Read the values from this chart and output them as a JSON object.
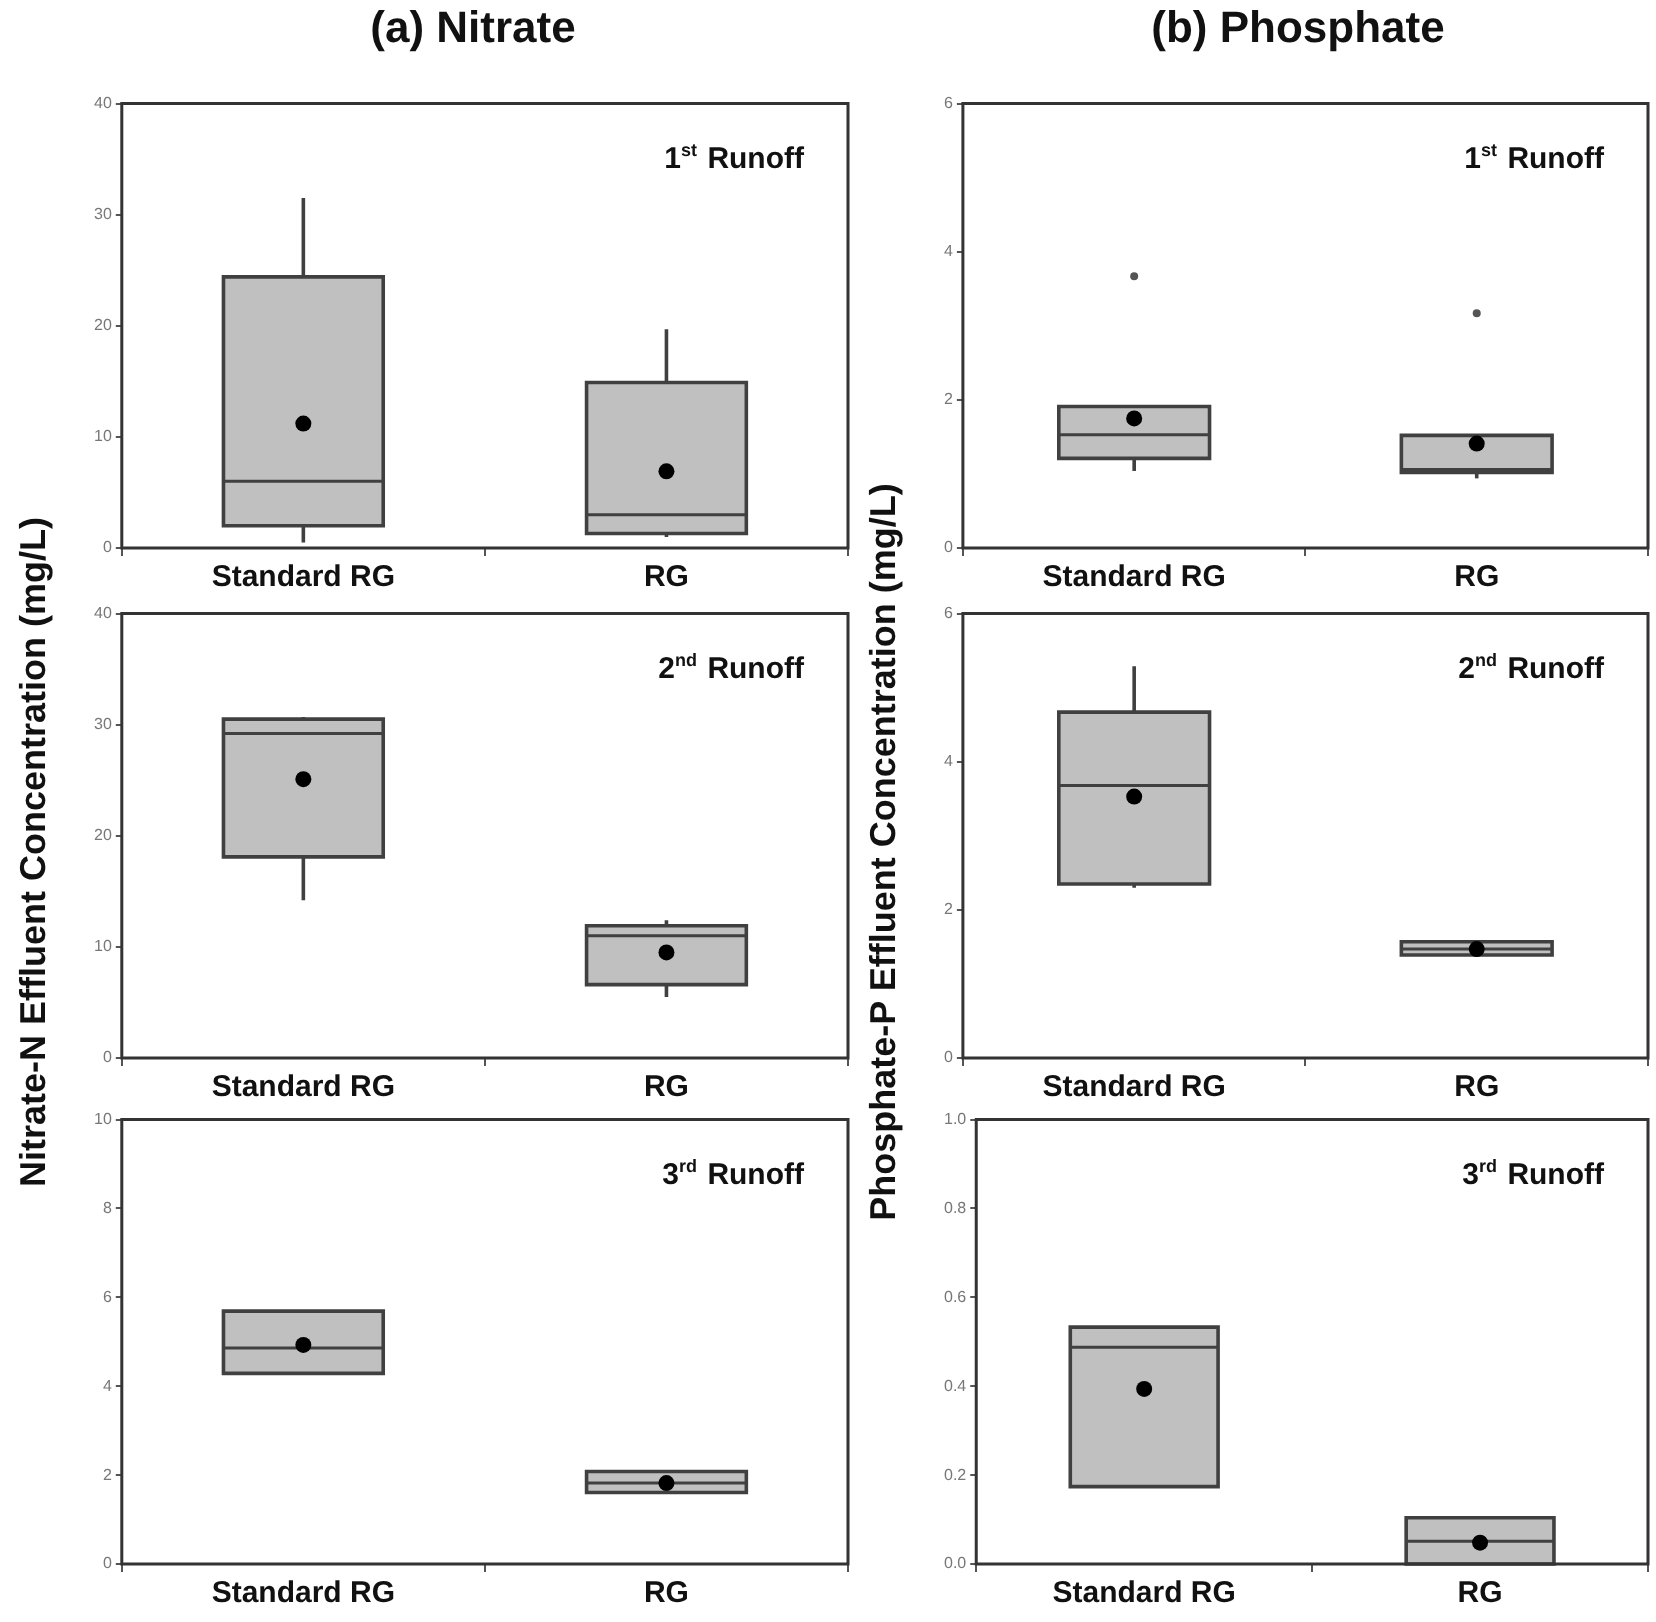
{
  "chart_data": [
    {
      "type": "box",
      "title": "(a) Nitrate",
      "categories": [
        "Standard RG",
        "RG"
      ],
      "ylim": [
        0,
        40
      ],
      "yticks": [
        0,
        10,
        20,
        30,
        40
      ],
      "annotations": [
        "1$^{st}$ Runoff"
      ],
      "series": [
        {
          "color": "#c0c0c0",
          "boxes": [
            {
              "low": 0.5,
              "q1": 2.0,
              "median": 6.0,
              "q3": 24.4,
              "high": 31.5,
              "mean": 11.2
            },
            {
              "low": 1.0,
              "q1": 1.3,
              "median": 3.0,
              "q3": 14.9,
              "high": 19.7,
              "mean": 6.9
            }
          ]
        }
      ]
    },
    {
      "type": "box",
      "title": "(b) Phosphate",
      "categories": [
        "Standard RG",
        "RG"
      ],
      "ylim": [
        0,
        6
      ],
      "yticks": [
        0,
        2,
        4,
        6
      ],
      "annotations": [
        "1$^{st}$ Runoff"
      ],
      "series": [
        {
          "color": "#c0c0c0",
          "boxes": [
            {
              "low": 1.04,
              "q1": 1.21,
              "median": 1.53,
              "q3": 1.91,
              "high": 1.91,
              "mean": 1.75,
              "outliers": [
                3.67
              ]
            },
            {
              "low": 0.94,
              "q1": 1.02,
              "median": 1.06,
              "q3": 1.52,
              "high": 1.52,
              "mean": 1.41,
              "outliers": [
                3.17
              ]
            }
          ]
        }
      ]
    },
    {
      "type": "box",
      "ylabel": "Nitrate-N Effluent Concentration (mg/L)",
      "categories": [
        "Standard RG",
        "RG"
      ],
      "ylim": [
        0,
        40
      ],
      "yticks": [
        0,
        10,
        20,
        30,
        40
      ],
      "annotations": [
        "2$^{nd}$ Runoff"
      ],
      "series": [
        {
          "color": "#c0c0c0",
          "boxes": [
            {
              "low": 14.2,
              "q1": 18.1,
              "median": 29.2,
              "q3": 30.5,
              "high": 30.7,
              "mean": 25.1
            },
            {
              "low": 5.5,
              "q1": 6.6,
              "median": 11.0,
              "q3": 11.9,
              "high": 12.4,
              "mean": 9.5
            }
          ]
        }
      ]
    },
    {
      "type": "box",
      "ylabel": "Phosphate-P Effluent Concentration (mg/L)",
      "categories": [
        "Standard RG",
        "RG"
      ],
      "ylim": [
        0,
        6
      ],
      "yticks": [
        0,
        2,
        4,
        6
      ],
      "annotations": [
        "2$^{nd}$ Runoff"
      ],
      "series": [
        {
          "color": "#c0c0c0",
          "boxes": [
            {
              "low": 2.3,
              "q1": 2.35,
              "median": 3.68,
              "q3": 4.67,
              "high": 5.29,
              "mean": 3.53
            },
            {
              "low": 1.39,
              "q1": 1.39,
              "median": 1.47,
              "q3": 1.57,
              "high": 1.57,
              "mean": 1.47
            }
          ]
        }
      ]
    },
    {
      "type": "box",
      "categories": [
        "Standard RG",
        "RG"
      ],
      "ylim": [
        0,
        10
      ],
      "yticks": [
        0,
        2,
        4,
        6,
        8,
        10
      ],
      "annotations": [
        "3$^{rd}$ Runoff"
      ],
      "series": [
        {
          "color": "#c0c0c0",
          "boxes": [
            {
              "low": 4.29,
              "q1": 4.29,
              "median": 4.86,
              "q3": 5.69,
              "high": 5.69,
              "mean": 4.93
            },
            {
              "low": 1.61,
              "q1": 1.61,
              "median": 1.82,
              "q3": 2.08,
              "high": 2.08,
              "mean": 1.82
            }
          ]
        }
      ]
    },
    {
      "type": "box",
      "categories": [
        "Standard RG",
        "RG"
      ],
      "ylim": [
        0,
        1
      ],
      "yticks": [
        {
          "value": 0,
          "label": "0.0"
        },
        0.2,
        0.4,
        0.6,
        0.8,
        {
          "value": 1,
          "label": "1.0"
        }
      ],
      "annotations": [
        "3$^{rd}$ Runoff"
      ],
      "series": [
        {
          "color": "#c0c0c0",
          "boxes": [
            {
              "low": 0.174,
              "q1": 0.174,
              "median": 0.488,
              "q3": 0.533,
              "high": 0.533,
              "mean": 0.394
            },
            {
              "low": 0,
              "q1": 0,
              "median": 0.051,
              "q3": 0.104,
              "high": 0.104,
              "mean": 0.048
            }
          ]
        }
      ]
    }
  ]
}
